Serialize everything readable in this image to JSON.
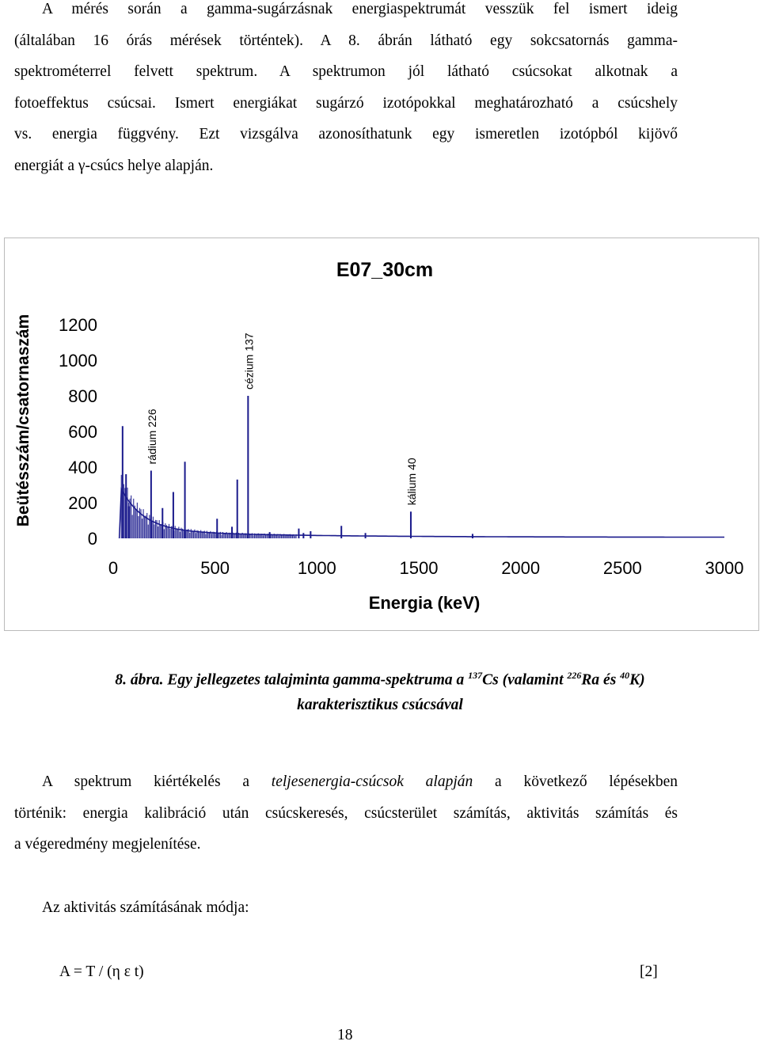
{
  "intro": {
    "lines": [
      "A mérés során a gamma-sugárzásnak energiaspektrumát vesszük fel ismert ideig",
      "(általában 16 órás mérések történtek).  A 8. ábrán látható egy sokcsatornás gamma-",
      "spektrométerrel felvett spektrum.  A spektrumon jól látható csúcsokat alkotnak a",
      "fotoeffektus csúcsai.  Ismert energiákat sugárzó izotópokkal meghatározható a csúcshely",
      "vs. energia függvény.  Ezt vizsgálva azonosíthatunk egy ismeretlen izotópból kijövő",
      "energiát a γ-csúcs helye alapján."
    ]
  },
  "chart_data": {
    "type": "line",
    "title": "E07_30cm",
    "xlabel": "Energia (keV)",
    "ylabel": "Beütésszám/csatornaszám",
    "xlim": [
      0,
      3000
    ],
    "ylim": [
      0,
      1200
    ],
    "xticks": [
      "0",
      "500",
      "1000",
      "1500",
      "2000",
      "2500",
      "3000"
    ],
    "yticks": [
      "0",
      "200",
      "400",
      "600",
      "800",
      "1000",
      "1200"
    ],
    "grid": false,
    "color": "#1a1a8c",
    "peaks": [
      {
        "x": 46,
        "y": 630
      },
      {
        "x": 63,
        "y": 360
      },
      {
        "x": 77,
        "y": 180
      },
      {
        "x": 186,
        "y": 380
      },
      {
        "x": 242,
        "y": 170
      },
      {
        "x": 295,
        "y": 260
      },
      {
        "x": 352,
        "y": 430
      },
      {
        "x": 510,
        "y": 110
      },
      {
        "x": 583,
        "y": 65
      },
      {
        "x": 609,
        "y": 330
      },
      {
        "x": 662,
        "y": 800
      },
      {
        "x": 768,
        "y": 35
      },
      {
        "x": 911,
        "y": 55
      },
      {
        "x": 934,
        "y": 30
      },
      {
        "x": 969,
        "y": 40
      },
      {
        "x": 1120,
        "y": 70
      },
      {
        "x": 1238,
        "y": 30
      },
      {
        "x": 1461,
        "y": 150
      },
      {
        "x": 1764,
        "y": 25
      }
    ],
    "annotations": [
      {
        "text": "rádium 226",
        "x": 186
      },
      {
        "text": "cézium 137",
        "x": 662
      },
      {
        "text": "kálium 40",
        "x": 1461
      }
    ]
  },
  "caption": {
    "line1_a": "8. ábra. Egy jellegzetes talajminta gamma-spektruma a ",
    "sup1": "137",
    "line1_b": "Cs (valamint ",
    "sup2": "226",
    "line1_c": "Ra és ",
    "sup3": "40",
    "line1_d": "K)",
    "line2": "karakterisztikus csúcsával"
  },
  "para2": {
    "l1_a": "A spektrum kiértékelés a ",
    "l1_em": "teljesenergia-csúcsok alapján",
    "l1_b": " a következő lépésekben",
    "l2": "történik: energia kalibráció után csúcskeresés, csúcsterület számítás, aktivitás számítás és",
    "l3": "a végeredmény megjelenítése."
  },
  "activity_heading": "Az aktivitás számításának módja:",
  "formula": "A = T / (η ε t)",
  "formula_ref": "[2]",
  "page_number": "18"
}
